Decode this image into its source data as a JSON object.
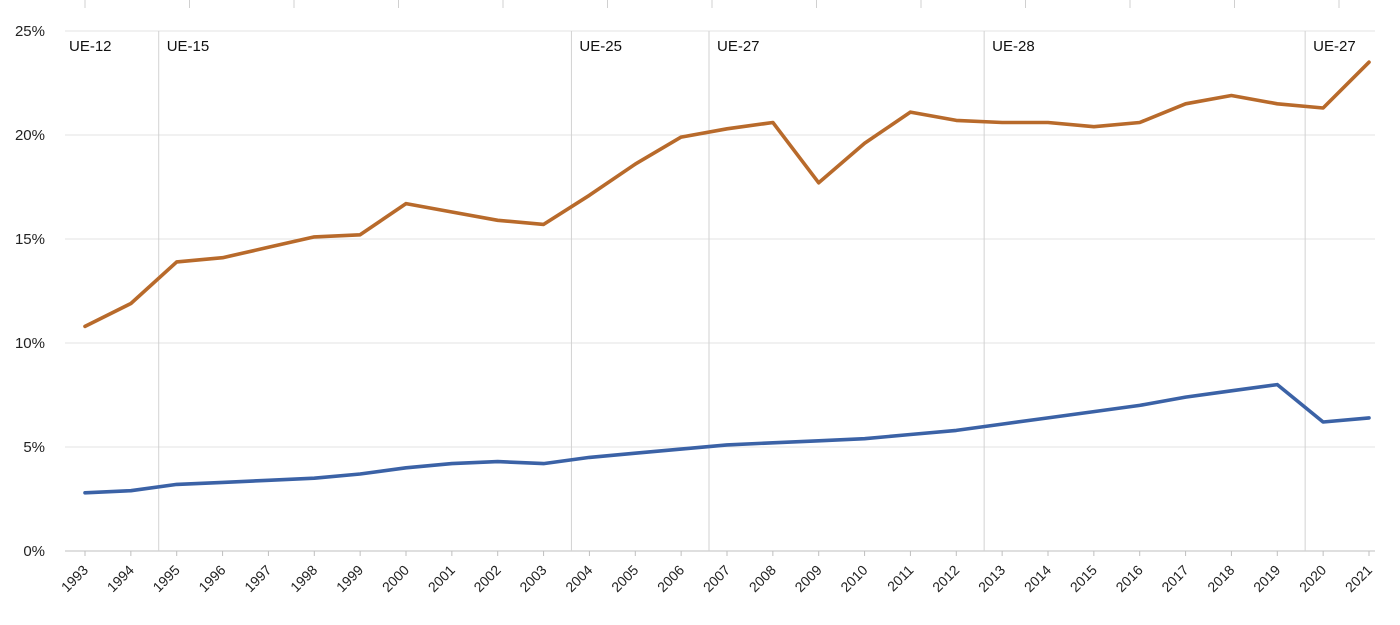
{
  "chart_data": {
    "type": "line",
    "x": [
      "1993",
      "1994",
      "1995",
      "1996",
      "1997",
      "1998",
      "1999",
      "2000",
      "2001",
      "2002",
      "2003",
      "2004",
      "2005",
      "2006",
      "2007",
      "2008",
      "2009",
      "2010",
      "2011",
      "2012",
      "2013",
      "2014",
      "2015",
      "2016",
      "2017",
      "2018",
      "2019",
      "2020",
      "2021"
    ],
    "ylim": [
      0,
      25
    ],
    "y_ticks": [
      "0%",
      "5%",
      "10%",
      "15%",
      "20%",
      "25%"
    ],
    "grid": true,
    "series": [
      {
        "color": "#b86a2b",
        "values": [
          10.8,
          11.9,
          13.9,
          14.1,
          14.6,
          15.1,
          15.2,
          16.7,
          16.3,
          15.9,
          15.7,
          17.1,
          18.6,
          19.9,
          20.3,
          20.6,
          17.7,
          19.6,
          21.1,
          20.7,
          20.6,
          20.6,
          20.4,
          20.6,
          21.5,
          21.9,
          21.5,
          21.3,
          23.5
        ]
      },
      {
        "color": "#3b62a6",
        "values": [
          2.8,
          2.9,
          3.2,
          3.3,
          3.4,
          3.5,
          3.7,
          4.0,
          4.2,
          4.3,
          4.2,
          4.5,
          4.7,
          4.9,
          5.1,
          5.2,
          5.3,
          5.4,
          5.6,
          5.8,
          6.1,
          6.4,
          6.7,
          7.0,
          7.4,
          7.7,
          8.0,
          6.2,
          6.4
        ]
      }
    ],
    "annotations": [
      {
        "label": "UE-12",
        "at": "1993"
      },
      {
        "label": "UE-15",
        "at": "1995"
      },
      {
        "label": "UE-25",
        "at": "2004"
      },
      {
        "label": "UE-27",
        "at": "2007"
      },
      {
        "label": "UE-28",
        "at": "2013"
      },
      {
        "label": "UE-27",
        "at": "2020"
      }
    ]
  }
}
